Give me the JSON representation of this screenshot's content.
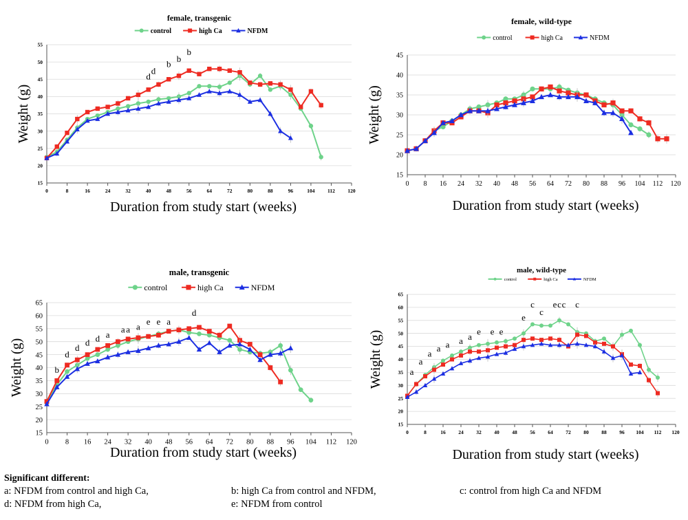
{
  "colors": {
    "control": "#6ed38a",
    "high_ca": "#ee2b22",
    "nfdm": "#1c2fe2"
  },
  "chart_data": [
    {
      "type": "line",
      "title": "female, transgenic",
      "xlabel": "Duration from study start (weeks)",
      "ylabel": "Weight (g)",
      "xlim": [
        0,
        120
      ],
      "ylim": [
        15,
        55
      ],
      "xticks": [
        "0",
        "8",
        "16",
        "24",
        "32",
        "40",
        "48",
        "56",
        "64",
        "72",
        "80",
        "88",
        "96",
        "104",
        "112",
        "120"
      ],
      "yticks": [
        "15",
        "20",
        "25",
        "30",
        "35",
        "40",
        "45",
        "50",
        "55"
      ],
      "legend": [
        "control",
        "high Ca",
        "NFDM"
      ],
      "series": [
        {
          "name": "control",
          "x": [
            0,
            4,
            8,
            12,
            16,
            20,
            24,
            28,
            32,
            36,
            40,
            44,
            48,
            52,
            56,
            60,
            64,
            68,
            72,
            76,
            80,
            84,
            88,
            92,
            96,
            100,
            104,
            108
          ],
          "y": [
            22.5,
            24,
            27.5,
            31,
            33.5,
            34.5,
            35.5,
            36.5,
            37.2,
            38,
            38.5,
            39.2,
            39.5,
            40,
            41,
            43,
            43,
            42.8,
            44,
            46,
            43.5,
            46,
            42,
            43,
            40.5,
            36.5,
            31.5,
            22.5
          ]
        },
        {
          "name": "high Ca",
          "x": [
            0,
            4,
            8,
            12,
            16,
            20,
            24,
            28,
            32,
            36,
            40,
            44,
            48,
            52,
            56,
            60,
            64,
            68,
            72,
            76,
            80,
            84,
            88,
            92,
            96,
            100,
            104,
            108
          ],
          "y": [
            22.2,
            25.5,
            29.5,
            33.5,
            35.5,
            36.5,
            37,
            38,
            39.5,
            40.5,
            42,
            43.5,
            45,
            46,
            47.5,
            46.5,
            48,
            48,
            47.5,
            47,
            44,
            43.5,
            43.8,
            43.5,
            42,
            37,
            41.5,
            37.5
          ]
        },
        {
          "name": "NFDM",
          "x": [
            0,
            4,
            8,
            12,
            16,
            20,
            24,
            28,
            32,
            36,
            40,
            44,
            48,
            52,
            56,
            60,
            64,
            68,
            72,
            76,
            80,
            84,
            88,
            92,
            96
          ],
          "y": [
            22.2,
            23.5,
            27,
            30.5,
            33,
            33.5,
            35,
            35.5,
            36,
            36.5,
            37,
            38,
            38.5,
            39,
            39.5,
            40.5,
            41.5,
            41,
            41.5,
            40.5,
            38.5,
            39,
            35,
            30,
            28
          ]
        }
      ],
      "annotations": [
        {
          "x": 40,
          "y": 45,
          "text": "d"
        },
        {
          "x": 42,
          "y": 46.5,
          "text": "d"
        },
        {
          "x": 48,
          "y": 48.5,
          "text": "b"
        },
        {
          "x": 52,
          "y": 50,
          "text": "b"
        },
        {
          "x": 56,
          "y": 52,
          "text": "b"
        }
      ]
    },
    {
      "type": "line",
      "title": "female, wild-type",
      "xlabel": "Duration from study start (weeks)",
      "ylabel": "Weight (g)",
      "xlim": [
        0,
        120
      ],
      "ylim": [
        15,
        45
      ],
      "xticks": [
        "0",
        "8",
        "16",
        "24",
        "32",
        "40",
        "48",
        "56",
        "64",
        "72",
        "80",
        "88",
        "96",
        "104",
        "112",
        "120"
      ],
      "yticks": [
        "15",
        "20",
        "25",
        "30",
        "35",
        "40",
        "45"
      ],
      "legend": [
        "control",
        "high Ca",
        "NFDM"
      ],
      "series": [
        {
          "name": "control",
          "x": [
            0,
            4,
            8,
            12,
            16,
            20,
            24,
            28,
            32,
            36,
            40,
            44,
            48,
            52,
            56,
            60,
            64,
            68,
            72,
            76,
            80,
            84,
            88,
            92,
            96,
            100,
            104,
            108
          ],
          "y": [
            21,
            21.5,
            23.5,
            26,
            27,
            28.5,
            30,
            31.5,
            32,
            32.5,
            33,
            34,
            34,
            35,
            36.5,
            36.5,
            36.5,
            37,
            36.2,
            35.5,
            35,
            34,
            33,
            32.5,
            30,
            27.5,
            26.5,
            25
          ]
        },
        {
          "name": "high Ca",
          "x": [
            0,
            4,
            8,
            12,
            16,
            20,
            24,
            28,
            32,
            36,
            40,
            44,
            48,
            52,
            56,
            60,
            64,
            68,
            72,
            76,
            80,
            84,
            88,
            92,
            96,
            100,
            104,
            108,
            112,
            116
          ],
          "y": [
            21,
            21.5,
            23.5,
            26,
            28,
            28,
            29.5,
            31,
            31,
            30.5,
            32.5,
            33,
            33.5,
            34,
            34.5,
            36.5,
            37,
            36,
            35.5,
            35,
            35,
            33.5,
            32.5,
            33,
            31,
            31,
            29,
            28,
            24,
            24
          ]
        },
        {
          "name": "NFDM",
          "x": [
            0,
            4,
            8,
            12,
            16,
            20,
            24,
            28,
            32,
            36,
            40,
            44,
            48,
            52,
            56,
            60,
            64,
            68,
            72,
            76,
            80,
            84,
            88,
            92,
            96,
            100
          ],
          "y": [
            21,
            21.5,
            23.5,
            25.5,
            28,
            28.5,
            30,
            31,
            31,
            31,
            31.5,
            32,
            32.5,
            33,
            33.5,
            34.5,
            35,
            34.5,
            34.5,
            34.5,
            33.5,
            33,
            30.5,
            30.5,
            29,
            25.5
          ]
        }
      ],
      "annotations": []
    },
    {
      "type": "line",
      "title": "male, transgenic",
      "xlabel": "Duration from study start (weeks)",
      "ylabel": "Weight (g)",
      "xlim": [
        0,
        120
      ],
      "ylim": [
        15,
        65
      ],
      "xticks": [
        "0",
        "8",
        "16",
        "24",
        "32",
        "40",
        "48",
        "56",
        "64",
        "72",
        "80",
        "88",
        "96",
        "104",
        "112",
        "120"
      ],
      "yticks": [
        "15",
        "20",
        "25",
        "30",
        "35",
        "40",
        "45",
        "50",
        "55",
        "60",
        "65"
      ],
      "legend": [
        "control",
        "high Ca",
        "NFDM"
      ],
      "series": [
        {
          "name": "control",
          "x": [
            0,
            4,
            8,
            12,
            16,
            20,
            24,
            28,
            32,
            36,
            40,
            44,
            48,
            52,
            56,
            60,
            64,
            68,
            72,
            76,
            80,
            84,
            88,
            92,
            96,
            100,
            104
          ],
          "y": [
            26.5,
            33.5,
            38.5,
            41,
            43.5,
            45,
            47,
            48.5,
            50,
            51,
            52,
            53,
            54,
            54.5,
            53.5,
            53,
            52.5,
            51.5,
            50.5,
            47,
            46,
            45.5,
            46,
            48.5,
            39,
            31.5,
            27.5
          ]
        },
        {
          "name": "high Ca",
          "x": [
            0,
            4,
            8,
            12,
            16,
            20,
            24,
            28,
            32,
            36,
            40,
            44,
            48,
            52,
            56,
            60,
            64,
            68,
            72,
            76,
            80,
            84,
            88,
            92
          ],
          "y": [
            27,
            35,
            41,
            43,
            45,
            47,
            48.5,
            50,
            51,
            51.5,
            52,
            52.5,
            54,
            54.5,
            55,
            55.5,
            54,
            52.5,
            56,
            50.5,
            49,
            45,
            40,
            34.5
          ]
        },
        {
          "name": "NFDM",
          "x": [
            0,
            4,
            8,
            12,
            16,
            20,
            24,
            28,
            32,
            36,
            40,
            44,
            48,
            52,
            56,
            60,
            64,
            68,
            72,
            76,
            80,
            84,
            88,
            92,
            96
          ],
          "y": [
            26,
            32.5,
            36.5,
            39.5,
            41.5,
            42.5,
            44,
            45,
            46,
            46.5,
            47.5,
            48.5,
            49,
            50,
            51.5,
            47,
            49.5,
            46,
            48.5,
            49,
            47,
            43,
            45,
            45.5,
            47.5
          ]
        }
      ],
      "annotations": [
        {
          "x": 4,
          "y": 38,
          "text": "b"
        },
        {
          "x": 8,
          "y": 44,
          "text": "d"
        },
        {
          "x": 12,
          "y": 46.5,
          "text": "d"
        },
        {
          "x": 16,
          "y": 48.5,
          "text": "d"
        },
        {
          "x": 20,
          "y": 50,
          "text": "d"
        },
        {
          "x": 24,
          "y": 51.5,
          "text": "a"
        },
        {
          "x": 30,
          "y": 53.5,
          "text": "a"
        },
        {
          "x": 32,
          "y": 53.5,
          "text": "a"
        },
        {
          "x": 36,
          "y": 54.5,
          "text": "a"
        },
        {
          "x": 40,
          "y": 56.5,
          "text": "e"
        },
        {
          "x": 44,
          "y": 56.5,
          "text": "e"
        },
        {
          "x": 48,
          "y": 56.5,
          "text": "a"
        },
        {
          "x": 58,
          "y": 60,
          "text": "d"
        }
      ]
    },
    {
      "type": "line",
      "title": "male, wild-type",
      "xlabel": "Duration from study start (weeks)",
      "ylabel": "Weight (g)",
      "xlim": [
        0,
        120
      ],
      "ylim": [
        15,
        65
      ],
      "xticks": [
        "0",
        "8",
        "16",
        "24",
        "32",
        "40",
        "48",
        "56",
        "64",
        "72",
        "80",
        "88",
        "96",
        "104",
        "112",
        "120"
      ],
      "yticks": [
        "15",
        "20",
        "25",
        "30",
        "35",
        "40",
        "45",
        "50",
        "55",
        "60",
        "65"
      ],
      "legend": [
        "control",
        "high Ca",
        "NFDM"
      ],
      "series": [
        {
          "name": "control",
          "x": [
            0,
            4,
            8,
            12,
            16,
            20,
            24,
            28,
            32,
            36,
            40,
            44,
            48,
            52,
            56,
            60,
            64,
            68,
            72,
            76,
            80,
            84,
            88,
            92,
            96,
            100,
            104,
            108,
            112
          ],
          "y": [
            26,
            30.5,
            34,
            37,
            39.5,
            41.5,
            43,
            44.5,
            45.5,
            46,
            46.5,
            47,
            48,
            50,
            53.5,
            53,
            53,
            55,
            53.5,
            50.5,
            50,
            47,
            48,
            45,
            49.5,
            51,
            45.5,
            36,
            33
          ]
        },
        {
          "name": "high Ca",
          "x": [
            0,
            4,
            8,
            12,
            16,
            20,
            24,
            28,
            32,
            36,
            40,
            44,
            48,
            52,
            56,
            60,
            64,
            68,
            72,
            76,
            80,
            84,
            88,
            92,
            96,
            100,
            104,
            108,
            112
          ],
          "y": [
            26,
            30.5,
            33.5,
            36,
            38,
            40,
            41.5,
            43,
            43,
            43.5,
            44.5,
            45,
            45.5,
            47.5,
            48,
            47.5,
            48,
            47.5,
            45,
            49.5,
            49,
            46.5,
            46,
            45,
            42,
            38,
            37.5,
            32,
            27
          ]
        },
        {
          "name": "NFDM",
          "x": [
            0,
            4,
            8,
            12,
            16,
            20,
            24,
            28,
            32,
            36,
            40,
            44,
            48,
            52,
            56,
            60,
            64,
            68,
            72,
            76,
            80,
            84,
            88,
            92,
            96,
            100,
            104
          ],
          "y": [
            25.5,
            27.5,
            30,
            32.5,
            34.5,
            36.5,
            38.5,
            39.5,
            40.5,
            41,
            42,
            42.5,
            44,
            45,
            45.5,
            46,
            45.5,
            45.5,
            45.5,
            46,
            45.5,
            45,
            43,
            40.5,
            41.5,
            34.5,
            35
          ]
        }
      ],
      "annotations": [
        {
          "x": 2,
          "y": 34,
          "text": "a"
        },
        {
          "x": 6,
          "y": 38,
          "text": "a"
        },
        {
          "x": 10,
          "y": 41,
          "text": "a"
        },
        {
          "x": 14,
          "y": 43,
          "text": "a"
        },
        {
          "x": 18,
          "y": 44.5,
          "text": "a"
        },
        {
          "x": 24,
          "y": 46,
          "text": "a"
        },
        {
          "x": 28,
          "y": 47.5,
          "text": "a"
        },
        {
          "x": 32,
          "y": 49.5,
          "text": "e"
        },
        {
          "x": 38,
          "y": 49.5,
          "text": "e"
        },
        {
          "x": 42,
          "y": 49.5,
          "text": "e"
        },
        {
          "x": 52,
          "y": 55,
          "text": "e"
        },
        {
          "x": 56,
          "y": 60,
          "text": "c"
        },
        {
          "x": 60,
          "y": 57,
          "text": "c"
        },
        {
          "x": 66,
          "y": 60,
          "text": "e"
        },
        {
          "x": 68,
          "y": 60,
          "text": "c"
        },
        {
          "x": 70,
          "y": 60,
          "text": "c"
        },
        {
          "x": 76,
          "y": 60,
          "text": "c"
        }
      ]
    }
  ],
  "footnote": {
    "heading": "Significant different:",
    "items": [
      "a: NFDM from control and high Ca,",
      "b: high Ca from control and NFDM,",
      "c: control from high Ca and NFDM",
      "d: NFDM from high Ca,",
      "e: NFDM from control"
    ]
  }
}
